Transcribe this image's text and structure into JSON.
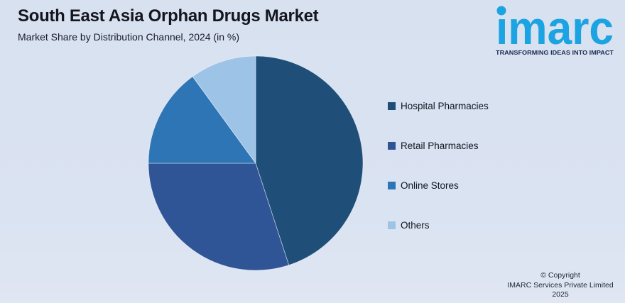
{
  "header": {
    "title": "South East Asia Orphan Drugs Market",
    "subtitle": "Market Share by Distribution Channel, 2024 (in %)"
  },
  "logo": {
    "brand": "imarc",
    "wordmark_dotless": "ımarc",
    "tagline": "TRANSFORMING IDEAS INTO IMPACT",
    "brand_color": "#1BA3E2",
    "tagline_color": "#1C2B50"
  },
  "chart_data": {
    "type": "pie",
    "title": "South East Asia Orphan Drugs Market",
    "subtitle": "Market Share by Distribution Channel, 2024 (in %)",
    "unit": "%",
    "year": "2024",
    "start_angle_deg": 0,
    "direction": "clockwise",
    "legend_position": "right",
    "slices": [
      {
        "label": "Hospital Pharmacies",
        "value": 45,
        "color": "#1F4E79"
      },
      {
        "label": "Retail Pharmacies",
        "value": 30,
        "color": "#2F5597"
      },
      {
        "label": "Online Stores",
        "value": 15,
        "color": "#2E75B6"
      },
      {
        "label": "Others",
        "value": 10,
        "color": "#9DC3E6"
      }
    ]
  },
  "footer": {
    "copyright_line1": "© Copyright",
    "copyright_line2": "IMARC Services Private Limited 2025"
  },
  "colors": {
    "background": "#D9E2F1",
    "title_text": "#15151E",
    "legend_text": "#11151F",
    "slice_separator": "rgba(255,255,255,0.55)"
  }
}
